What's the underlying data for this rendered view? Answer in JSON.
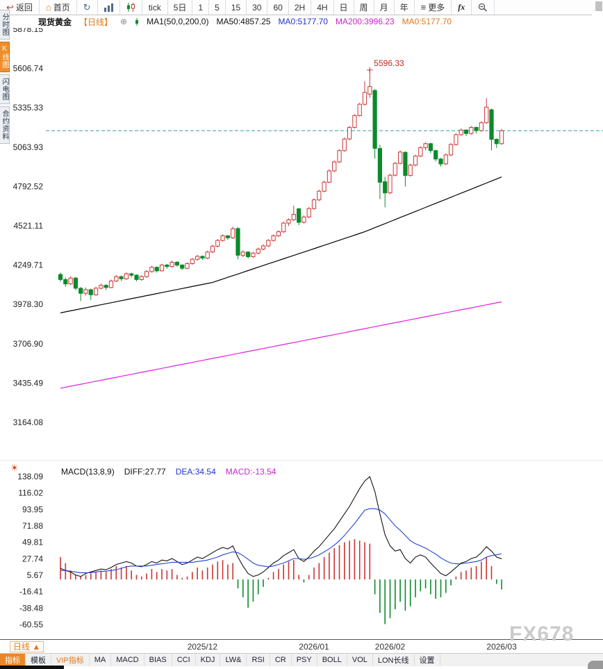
{
  "topbar": {
    "back": "返回",
    "home": "首页",
    "tick": "tick",
    "five_day": "5日",
    "intervals": [
      "1",
      "5",
      "15",
      "30",
      "60",
      "2H",
      "4H",
      "日",
      "周",
      "月",
      "年"
    ],
    "more": "更多",
    "fx": "fx"
  },
  "infobar": {
    "symbol": "现货黄金",
    "period_tag": "【日线】",
    "ma_params": "MA1(50,0,200,0)",
    "ma50_text": "MA50:4857.25",
    "ma0_blue": "MA0:5177.70",
    "ma200_text": "MA200:3996.23",
    "ma0_orange": "MA0:5177.70"
  },
  "side_tabs": [
    {
      "label": "分时图",
      "active": false
    },
    {
      "label": "K线图",
      "active": true
    },
    {
      "label": "闪电图",
      "active": false
    },
    {
      "label": "合约资料",
      "active": false
    }
  ],
  "macd_header": {
    "title": "MACD(13,8,9)",
    "diff": "DIFF:27.77",
    "dea": "DEA:34.54",
    "macd": "MACD:-13.54"
  },
  "xaxis": {
    "period_box": "日线 ▲",
    "labels": [
      {
        "text": "2025/12",
        "i": 28
      },
      {
        "text": "2026/01",
        "i": 50
      },
      {
        "text": "2026/02",
        "i": 65
      },
      {
        "text": "2026/03",
        "i": 87
      }
    ]
  },
  "bottom_toolbar": [
    {
      "label": "指标"
    },
    {
      "label": "模板"
    },
    {
      "label": "VIP指标"
    },
    {
      "label": "MA"
    },
    {
      "label": "MACD"
    },
    {
      "label": "BIAS"
    },
    {
      "label": "CCI"
    },
    {
      "label": "KDJ"
    },
    {
      "label": "LW&"
    },
    {
      "label": "RSI"
    },
    {
      "label": "CR"
    },
    {
      "label": "PSY"
    },
    {
      "label": "BOLL"
    },
    {
      "label": "VOL"
    },
    {
      "label": "LON长线"
    },
    {
      "label": "设置"
    }
  ],
  "watermark": "FX678",
  "colors": {
    "up": "#cc3333",
    "down": "#0a8a2a",
    "ma50": "#000000",
    "ma200": "#e020e0",
    "current_price_line": "#2e9e9e",
    "accent_orange": "#e07818",
    "diff_line": "#111111",
    "dea_line": "#2244cc"
  },
  "chart_data": {
    "type": "candlestick+macd",
    "title": "现货黄金 日线",
    "price_axis": {
      "ticks": [
        "5878.15",
        "5606.74",
        "5335.33",
        "5063.93",
        "4792.52",
        "4521.11",
        "4249.71",
        "3978.30",
        "3706.90",
        "3435.49",
        "3164.08"
      ]
    },
    "macd_axis": {
      "ticks": [
        "138.09",
        "116.02",
        "93.95",
        "71.88",
        "49.81",
        "27.74",
        "5.67",
        "-16.41",
        "-38.48",
        "-60.55"
      ]
    },
    "current_price": 5177.7,
    "peak_annotation": {
      "text": "5596.33",
      "price": 5596.33,
      "index": 61
    },
    "x_labels": [
      "2025/12",
      "2026/01",
      "2026/02",
      "2026/03"
    ],
    "candles": [
      [
        4185,
        4198,
        4135,
        4150
      ],
      [
        4150,
        4165,
        4100,
        4120
      ],
      [
        4120,
        4172,
        4112,
        4160
      ],
      [
        4160,
        4168,
        4075,
        4090
      ],
      [
        4090,
        4098,
        4002,
        4055
      ],
      [
        4055,
        4095,
        4040,
        4080
      ],
      [
        4080,
        4088,
        4008,
        4045
      ],
      [
        4045,
        4100,
        4038,
        4090
      ],
      [
        4090,
        4122,
        4082,
        4110
      ],
      [
        4110,
        4118,
        4078,
        4095
      ],
      [
        4095,
        4150,
        4090,
        4140
      ],
      [
        4140,
        4182,
        4132,
        4170
      ],
      [
        4170,
        4178,
        4140,
        4155
      ],
      [
        4155,
        4200,
        4148,
        4190
      ],
      [
        4190,
        4198,
        4165,
        4180
      ],
      [
        4180,
        4186,
        4138,
        4150
      ],
      [
        4150,
        4180,
        4142,
        4170
      ],
      [
        4170,
        4215,
        4162,
        4205
      ],
      [
        4205,
        4245,
        4198,
        4235
      ],
      [
        4235,
        4240,
        4198,
        4210
      ],
      [
        4210,
        4260,
        4205,
        4250
      ],
      [
        4250,
        4258,
        4225,
        4240
      ],
      [
        4240,
        4280,
        4232,
        4270
      ],
      [
        4270,
        4276,
        4238,
        4250
      ],
      [
        4250,
        4256,
        4215,
        4228
      ],
      [
        4228,
        4268,
        4220,
        4260
      ],
      [
        4260,
        4300,
        4252,
        4290
      ],
      [
        4290,
        4320,
        4282,
        4310
      ],
      [
        4310,
        4316,
        4285,
        4298
      ],
      [
        4298,
        4350,
        4292,
        4340
      ],
      [
        4340,
        4390,
        4332,
        4380
      ],
      [
        4380,
        4430,
        4372,
        4420
      ],
      [
        4420,
        4462,
        4412,
        4452
      ],
      [
        4452,
        4458,
        4425,
        4438
      ],
      [
        4438,
        4515,
        4430,
        4500
      ],
      [
        4502,
        4512,
        4290,
        4318
      ],
      [
        4318,
        4352,
        4305,
        4340
      ],
      [
        4340,
        4346,
        4295,
        4308
      ],
      [
        4308,
        4342,
        4300,
        4332
      ],
      [
        4332,
        4370,
        4325,
        4360
      ],
      [
        4360,
        4392,
        4352,
        4382
      ],
      [
        4382,
        4430,
        4375,
        4420
      ],
      [
        4420,
        4462,
        4412,
        4452
      ],
      [
        4452,
        4490,
        4444,
        4480
      ],
      [
        4480,
        4550,
        4472,
        4540
      ],
      [
        4540,
        4572,
        4520,
        4562
      ],
      [
        4562,
        4660,
        4555,
        4600
      ],
      [
        4638,
        4645,
        4525,
        4545
      ],
      [
        4545,
        4592,
        4536,
        4582
      ],
      [
        4582,
        4650,
        4575,
        4640
      ],
      [
        4640,
        4710,
        4632,
        4700
      ],
      [
        4700,
        4770,
        4692,
        4760
      ],
      [
        4760,
        4832,
        4752,
        4822
      ],
      [
        4822,
        4910,
        4815,
        4900
      ],
      [
        4900,
        4972,
        4892,
        4962
      ],
      [
        4962,
        5050,
        4955,
        5040
      ],
      [
        5040,
        5130,
        5032,
        5120
      ],
      [
        5120,
        5210,
        5112,
        5200
      ],
      [
        5200,
        5292,
        5192,
        5282
      ],
      [
        5282,
        5370,
        5275,
        5360
      ],
      [
        5360,
        5520,
        5352,
        5442
      ],
      [
        5430,
        5596.33,
        5405,
        5482
      ],
      [
        5455,
        5465,
        4985,
        5055
      ],
      [
        5055,
        5080,
        4705,
        4822
      ],
      [
        4825,
        4860,
        4648,
        4748
      ],
      [
        4748,
        4880,
        4740,
        4870
      ],
      [
        4870,
        4962,
        4862,
        4952
      ],
      [
        4952,
        5040,
        4945,
        5030
      ],
      [
        5028,
        5035,
        4792,
        4868
      ],
      [
        4868,
        4950,
        4860,
        4940
      ],
      [
        4940,
        5012,
        4932,
        5002
      ],
      [
        5002,
        5070,
        4995,
        5060
      ],
      [
        5060,
        5098,
        5042,
        5088
      ],
      [
        5088,
        5094,
        5022,
        5040
      ],
      [
        5040,
        5046,
        4965,
        4982
      ],
      [
        4982,
        4990,
        4930,
        4948
      ],
      [
        4948,
        5020,
        4940,
        5010
      ],
      [
        5010,
        5092,
        5002,
        5082
      ],
      [
        5082,
        5160,
        5075,
        5150
      ],
      [
        5150,
        5192,
        5142,
        5182
      ],
      [
        5182,
        5188,
        5140,
        5158
      ],
      [
        5158,
        5210,
        5150,
        5200
      ],
      [
        5200,
        5206,
        5158,
        5178
      ],
      [
        5178,
        5242,
        5170,
        5232
      ],
      [
        5232,
        5402,
        5225,
        5340
      ],
      [
        5322,
        5330,
        5042,
        5118
      ],
      [
        5118,
        5124,
        5058,
        5088
      ],
      [
        5088,
        5190,
        5080,
        5177
      ]
    ],
    "ma50_points": [
      [
        0,
        3920
      ],
      [
        10,
        3990
      ],
      [
        20,
        4060
      ],
      [
        30,
        4130
      ],
      [
        40,
        4247
      ],
      [
        50,
        4363
      ],
      [
        60,
        4480
      ],
      [
        70,
        4620
      ],
      [
        80,
        4760
      ],
      [
        87,
        4858
      ]
    ],
    "ma200_points": [
      [
        0,
        3400
      ],
      [
        20,
        3537
      ],
      [
        40,
        3674
      ],
      [
        60,
        3811
      ],
      [
        87,
        3996
      ]
    ],
    "macd": {
      "diff": [
        15,
        12,
        10,
        6,
        4,
        8,
        10,
        12,
        14,
        13,
        16,
        20,
        22,
        24,
        22,
        18,
        17,
        20,
        24,
        22,
        26,
        25,
        28,
        24,
        20,
        22,
        26,
        30,
        28,
        32,
        36,
        40,
        43,
        41,
        45,
        30,
        18,
        8,
        4,
        6,
        10,
        16,
        22,
        26,
        32,
        36,
        40,
        28,
        24,
        30,
        38,
        44,
        52,
        60,
        68,
        78,
        88,
        98,
        110,
        122,
        132,
        138,
        118,
        88,
        60,
        45,
        38,
        40,
        28,
        22,
        30,
        33,
        30,
        22,
        15,
        8,
        5,
        10,
        16,
        22,
        24,
        28,
        30,
        36,
        44,
        38,
        30,
        27.77
      ],
      "dea": [
        12,
        12,
        11,
        10,
        9,
        9,
        9,
        10,
        11,
        11,
        12,
        13,
        15,
        17,
        18,
        18,
        18,
        18,
        19,
        20,
        21,
        22,
        23,
        23,
        23,
        23,
        23,
        24,
        25,
        26,
        28,
        30,
        33,
        35,
        37,
        36,
        32,
        27,
        22,
        19,
        18,
        17,
        18,
        20,
        22,
        25,
        28,
        28,
        27,
        28,
        30,
        33,
        37,
        41,
        46,
        52,
        59,
        67,
        75,
        84,
        93,
        95,
        95,
        93,
        88,
        80,
        72,
        66,
        59,
        52,
        48,
        45,
        42,
        38,
        34,
        29,
        25,
        22,
        21,
        21,
        22,
        23,
        24,
        26,
        30,
        32,
        33,
        34.54
      ],
      "hist": [
        30,
        22,
        12,
        6,
        4,
        6,
        8,
        10,
        12,
        10,
        14,
        18,
        16,
        18,
        12,
        6,
        4,
        8,
        14,
        10,
        14,
        12,
        14,
        6,
        2,
        4,
        10,
        16,
        12,
        16,
        20,
        24,
        26,
        20,
        22,
        -12,
        -24,
        -38,
        -30,
        -20,
        -10,
        2,
        10,
        14,
        20,
        24,
        26,
        6,
        -4,
        6,
        16,
        22,
        30,
        36,
        42,
        46,
        50,
        52,
        54,
        52,
        50,
        48,
        -20,
        -45,
        -60,
        -52,
        -40,
        -30,
        -42,
        -36,
        -24,
        -16,
        -12,
        -20,
        -26,
        -24,
        -18,
        -8,
        4,
        10,
        12,
        16,
        18,
        24,
        30,
        18,
        -6,
        -13.54
      ]
    }
  }
}
